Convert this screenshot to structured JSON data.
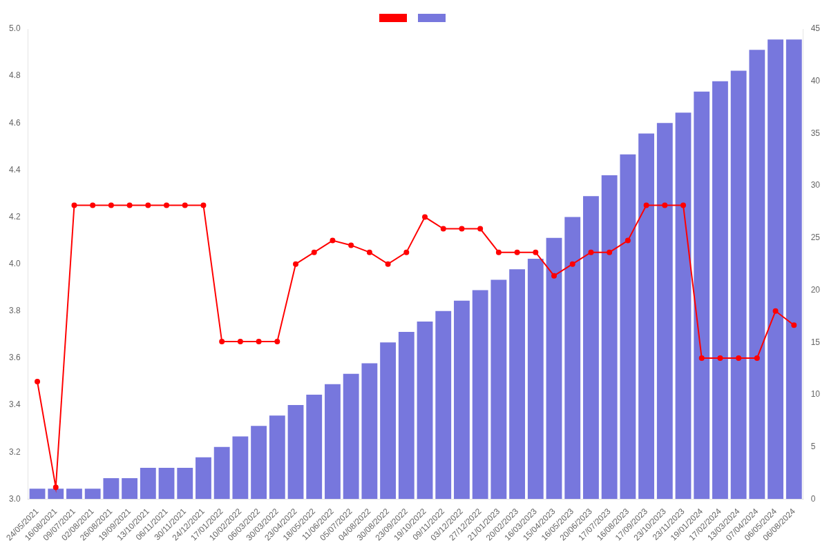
{
  "chart_data": {
    "type": "bar",
    "categories": [
      "24/05/2021",
      "16/08/2021",
      "09/07/2021",
      "02/08/2021",
      "26/08/2021",
      "19/09/2021",
      "13/10/2021",
      "06/11/2021",
      "30/11/2021",
      "24/12/2021",
      "17/01/2022",
      "10/02/2022",
      "06/03/2022",
      "30/03/2022",
      "23/04/2022",
      "18/05/2022",
      "11/06/2022",
      "05/07/2022",
      "04/08/2022",
      "30/08/2022",
      "23/09/2022",
      "19/10/2022",
      "09/11/2022",
      "03/12/2022",
      "27/12/2022",
      "21/01/2023",
      "20/02/2023",
      "16/03/2023",
      "15/04/2023",
      "16/05/2023",
      "20/06/2023",
      "17/07/2023",
      "16/08/2023",
      "17/09/2023",
      "23/10/2023",
      "23/11/2023",
      "19/01/2024",
      "17/02/2024",
      "13/03/2024",
      "07/04/2024",
      "06/05/2024",
      "06/08/2024"
    ],
    "series": [
      {
        "type": "line",
        "color": "#ff0000",
        "marker": "circle",
        "values": [
          3.5,
          3.05,
          4.25,
          4.25,
          4.25,
          4.25,
          4.25,
          4.25,
          4.25,
          4.25,
          3.67,
          3.67,
          3.67,
          3.67,
          4.0,
          4.05,
          4.1,
          4.08,
          4.05,
          4.0,
          4.05,
          4.2,
          4.15,
          4.15,
          4.15,
          4.05,
          4.05,
          4.05,
          3.95,
          4.0,
          4.05,
          4.05,
          4.1,
          4.25,
          4.25,
          4.25,
          3.6,
          3.6,
          3.6,
          3.6,
          3.8,
          3.74
        ]
      },
      {
        "type": "bar",
        "color": "#7777dd",
        "axis": "y2",
        "values": [
          1,
          1,
          1,
          1,
          2,
          2,
          3,
          3,
          3,
          4,
          5,
          6,
          7,
          8,
          9,
          10,
          11,
          12,
          13,
          15,
          16,
          17,
          18,
          19,
          20,
          21,
          22,
          23,
          25,
          27,
          29,
          31,
          33,
          35,
          36,
          37,
          39,
          40,
          41,
          43,
          44,
          44
        ]
      }
    ],
    "ylim": [
      3.0,
      5.0
    ],
    "yticks": [
      {
        "value": 3.0,
        "label": "3.0"
      },
      3.2,
      3.4,
      3.6,
      3.8,
      {
        "value": 4.0,
        "label": "4.0"
      },
      4.2,
      4.4,
      4.6,
      4.8,
      {
        "value": 5.0,
        "label": "5.0"
      }
    ],
    "y2lim": [
      0,
      45
    ],
    "y2ticks": [
      0,
      5,
      10,
      15,
      20,
      25,
      30,
      35,
      40,
      45
    ],
    "grid": false,
    "legend": "top"
  }
}
